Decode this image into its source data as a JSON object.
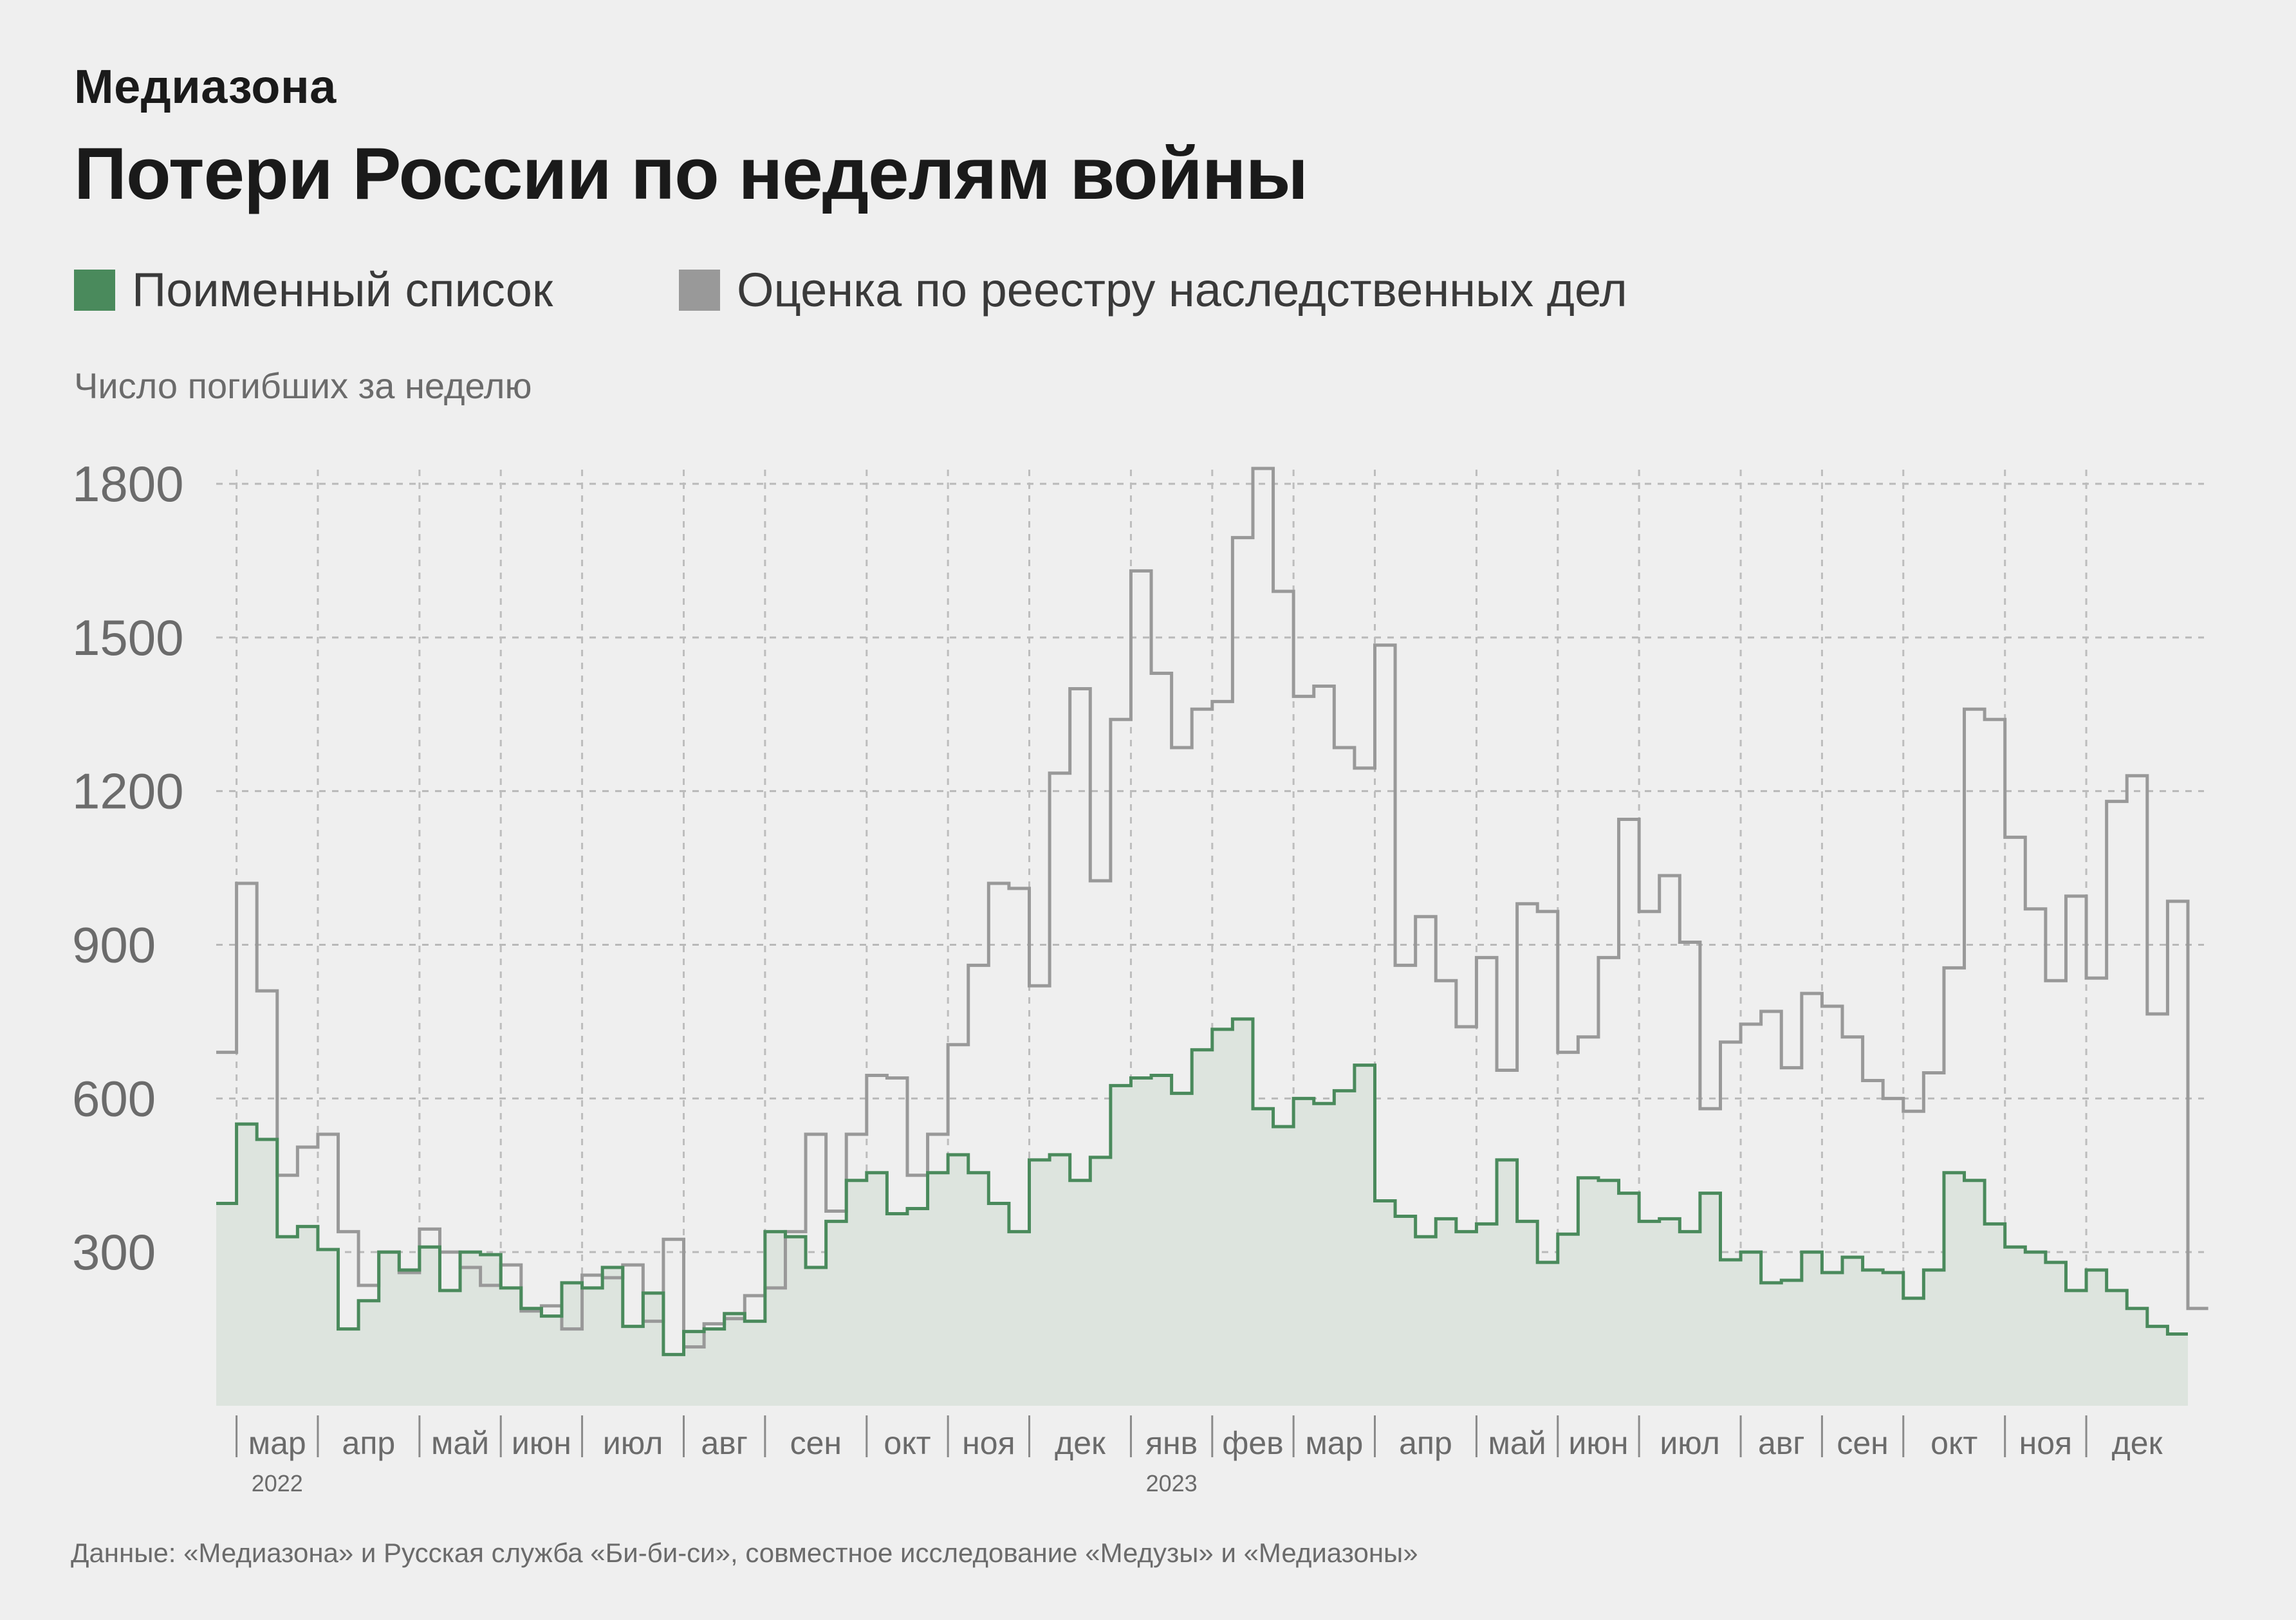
{
  "brand": "Медиазона",
  "title": "Потери России по неделям войны",
  "legend": [
    {
      "label": "Поименный список",
      "color": "#4a8a5c"
    },
    {
      "label": "Оценка по реестру наследственных дел",
      "color": "#999999"
    }
  ],
  "ylabel": "Число погибших за неделю",
  "source": "Данные: «Медиазона» и Русская служба «Би-би-си», совместное исследование «Медузы» и «Медиазоны»",
  "chart_data": {
    "type": "line",
    "step": true,
    "x_unit": "week",
    "x_start": "2022-02-21",
    "ylim": [
      0,
      1800
    ],
    "yticks": [
      300,
      600,
      900,
      1200,
      1500,
      1800
    ],
    "grid": true,
    "months": [
      {
        "label": "мар",
        "year": "2022",
        "week": 1
      },
      {
        "label": "апр",
        "week": 5
      },
      {
        "label": "май",
        "week": 10
      },
      {
        "label": "июн",
        "week": 14
      },
      {
        "label": "июл",
        "week": 18
      },
      {
        "label": "авг",
        "week": 23
      },
      {
        "label": "сен",
        "week": 27
      },
      {
        "label": "окт",
        "week": 32
      },
      {
        "label": "ноя",
        "week": 36
      },
      {
        "label": "дек",
        "week": 40
      },
      {
        "label": "янв",
        "year": "2023",
        "week": 45
      },
      {
        "label": "фев",
        "week": 49
      },
      {
        "label": "мар",
        "week": 53
      },
      {
        "label": "апр",
        "week": 57
      },
      {
        "label": "май",
        "week": 62
      },
      {
        "label": "июн",
        "week": 66
      },
      {
        "label": "июл",
        "week": 70
      },
      {
        "label": "авг",
        "week": 75
      },
      {
        "label": "сен",
        "week": 79
      },
      {
        "label": "окт",
        "week": 83
      },
      {
        "label": "ноя",
        "week": 88
      },
      {
        "label": "дек",
        "week": 92
      }
    ],
    "series": [
      {
        "name": "Поименный список",
        "color": "#4a8a5c",
        "fill": "#dde4de",
        "values": [
          395,
          550,
          520,
          330,
          350,
          305,
          150,
          205,
          300,
          265,
          310,
          225,
          300,
          295,
          230,
          190,
          175,
          240,
          230,
          270,
          155,
          220,
          100,
          145,
          150,
          180,
          165,
          340,
          330,
          270,
          360,
          440,
          455,
          375,
          385,
          455,
          490,
          455,
          395,
          340,
          480,
          490,
          440,
          485,
          625,
          640,
          645,
          610,
          695,
          735,
          755,
          580,
          545,
          600,
          590,
          615,
          665,
          400,
          370,
          330,
          365,
          340,
          355,
          480,
          360,
          280,
          335,
          445,
          440,
          415,
          360,
          365,
          340,
          415,
          285,
          300,
          240,
          245,
          300,
          260,
          290,
          265,
          260,
          210,
          265,
          455,
          440,
          355,
          310,
          300,
          280,
          225,
          265,
          225,
          190,
          155,
          140
        ]
      },
      {
        "name": "Оценка по реестру наследственных дел",
        "color": "#999999",
        "values": [
          690,
          1020,
          810,
          450,
          505,
          530,
          340,
          235,
          300,
          260,
          345,
          300,
          270,
          235,
          275,
          185,
          195,
          150,
          255,
          250,
          275,
          165,
          325,
          115,
          160,
          170,
          215,
          230,
          340,
          530,
          380,
          530,
          645,
          640,
          450,
          530,
          705,
          860,
          1020,
          1010,
          820,
          1235,
          1400,
          1025,
          1340,
          1630,
          1430,
          1285,
          1360,
          1375,
          1695,
          1830,
          1590,
          1385,
          1405,
          1285,
          1245,
          1485,
          860,
          955,
          830,
          740,
          875,
          655,
          980,
          965,
          690,
          720,
          875,
          1145,
          965,
          1035,
          905,
          580,
          710,
          745,
          770,
          660,
          805,
          780,
          720,
          635,
          600,
          575,
          650,
          855,
          1360,
          1340,
          1110,
          970,
          830,
          995,
          835,
          1180,
          1230,
          765,
          985,
          190
        ]
      }
    ]
  }
}
